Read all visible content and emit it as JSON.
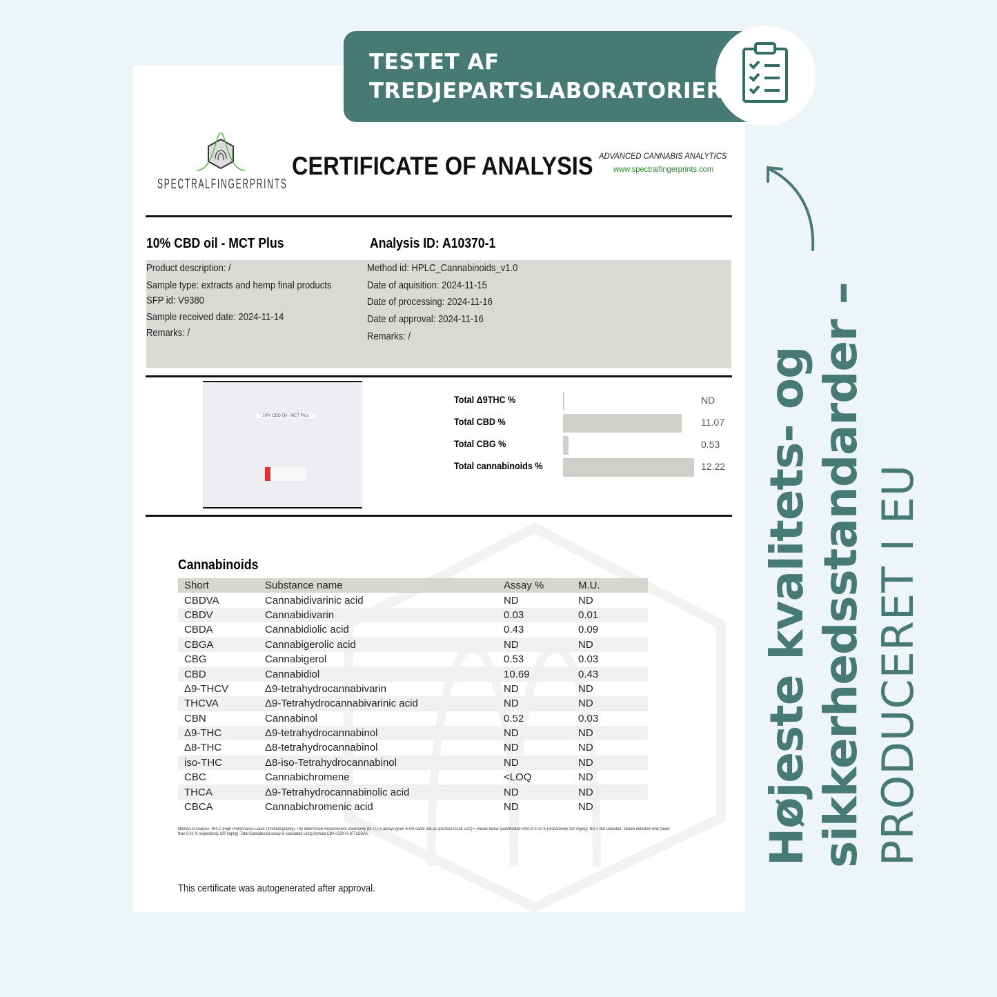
{
  "banner": {
    "line1": "TESTET AF",
    "line2": "TREDJEPARTSLABORATORIER",
    "icon": "clipboard-checklist-icon"
  },
  "side": {
    "line1": "Højeste kvalitets- og",
    "line2": "sikkerhedsstandarder –",
    "line3": "PRODUCERET I EU"
  },
  "colors": {
    "brand": "#477a72",
    "background": "#eef5f9"
  },
  "cert": {
    "logo_text": "SPECTRALFINGERPRINTS",
    "title": "CERTIFICATE OF ANALYSIS",
    "tagline": "ADVANCED CANNABIS ANALYTICS",
    "website": "www.spectralfingerprints.com",
    "product": "10% CBD oil - MCT Plus",
    "analysis_id": "Analysis ID: A10370-1",
    "left_info": [
      "Product description: /",
      "Sample type: extracts and hemp final products",
      "SFP id: V9380",
      "Sample received date: 2024-11-14",
      "Remarks: /"
    ],
    "right_info": [
      "Method id: HPLC_Cannabinoids_v1.0",
      "Date of aquisition: 2024-11-15",
      "Date of processing: 2024-11-16",
      "Date of approval: 2024-11-16",
      "Remarks: /"
    ],
    "photo_label": "10% CBD Oil - MCT Plus",
    "totals": [
      {
        "label": "Total Δ9THC %",
        "value": "ND",
        "num": 0
      },
      {
        "label": "Total CBD %",
        "value": "11.07",
        "num": 11.07
      },
      {
        "label": "Total CBG %",
        "value": "0.53",
        "num": 0.53
      },
      {
        "label": "Total cannabinoids %",
        "value": "12.22",
        "num": 12.22
      }
    ],
    "section": "Cannabinoids",
    "columns": [
      "Short",
      "Substance name",
      "Assay %",
      "M.U."
    ],
    "rows": [
      [
        "CBDVA",
        "Cannabidivarinic acid",
        "ND",
        "ND"
      ],
      [
        "CBDV",
        "Cannabidivarin",
        "0.03",
        "0.01"
      ],
      [
        "CBDA",
        "Cannabidiolic acid",
        "0.43",
        "0.09"
      ],
      [
        "CBGA",
        "Cannabigerolic acid",
        "ND",
        "ND"
      ],
      [
        "CBG",
        "Cannabigerol",
        "0.53",
        "0.03"
      ],
      [
        "CBD",
        "Cannabidiol",
        "10.69",
        "0.43"
      ],
      [
        "Δ9-THCV",
        "Δ9-tetrahydrocannabivarin",
        "ND",
        "ND"
      ],
      [
        "THCVA",
        "Δ9-Tetrahydrocannabivarinic acid",
        "ND",
        "ND"
      ],
      [
        "CBN",
        "Cannabinol",
        "0.52",
        "0.03"
      ],
      [
        "Δ9-THC",
        "Δ9-tetrahydrocannabinol",
        "ND",
        "ND"
      ],
      [
        "Δ8-THC",
        "Δ8-tetrahydrocannabinol",
        "ND",
        "ND"
      ],
      [
        "iso-THC",
        "Δ8-iso-Tetrahydrocannabinol",
        "ND",
        "ND"
      ],
      [
        "CBC",
        "Cannabichromene",
        "<LOQ",
        "ND"
      ],
      [
        "THCA",
        "Δ9-Tetrahydrocannabinolic acid",
        "ND",
        "ND"
      ],
      [
        "CBCA",
        "Cannabichromenic acid",
        "ND",
        "ND"
      ]
    ],
    "footnote": "Method of Analysis: HPLC (High Preformance Liquid Chromatography). The determined measurement uncertainty (M. U.) is always given in the same unit as specified result. LOQ = Values below quantification limit of 0.02 % (respectively 200 mg/kg). ND = Not Detected - bellow detection limit (lower than 0.01 % respectively 100 mg/kg). Total Cannabinoid assay is calculated using formula CBX=CBX+0.877xCBXA.",
    "autogen": "This certificate was autogenerated after approval."
  }
}
